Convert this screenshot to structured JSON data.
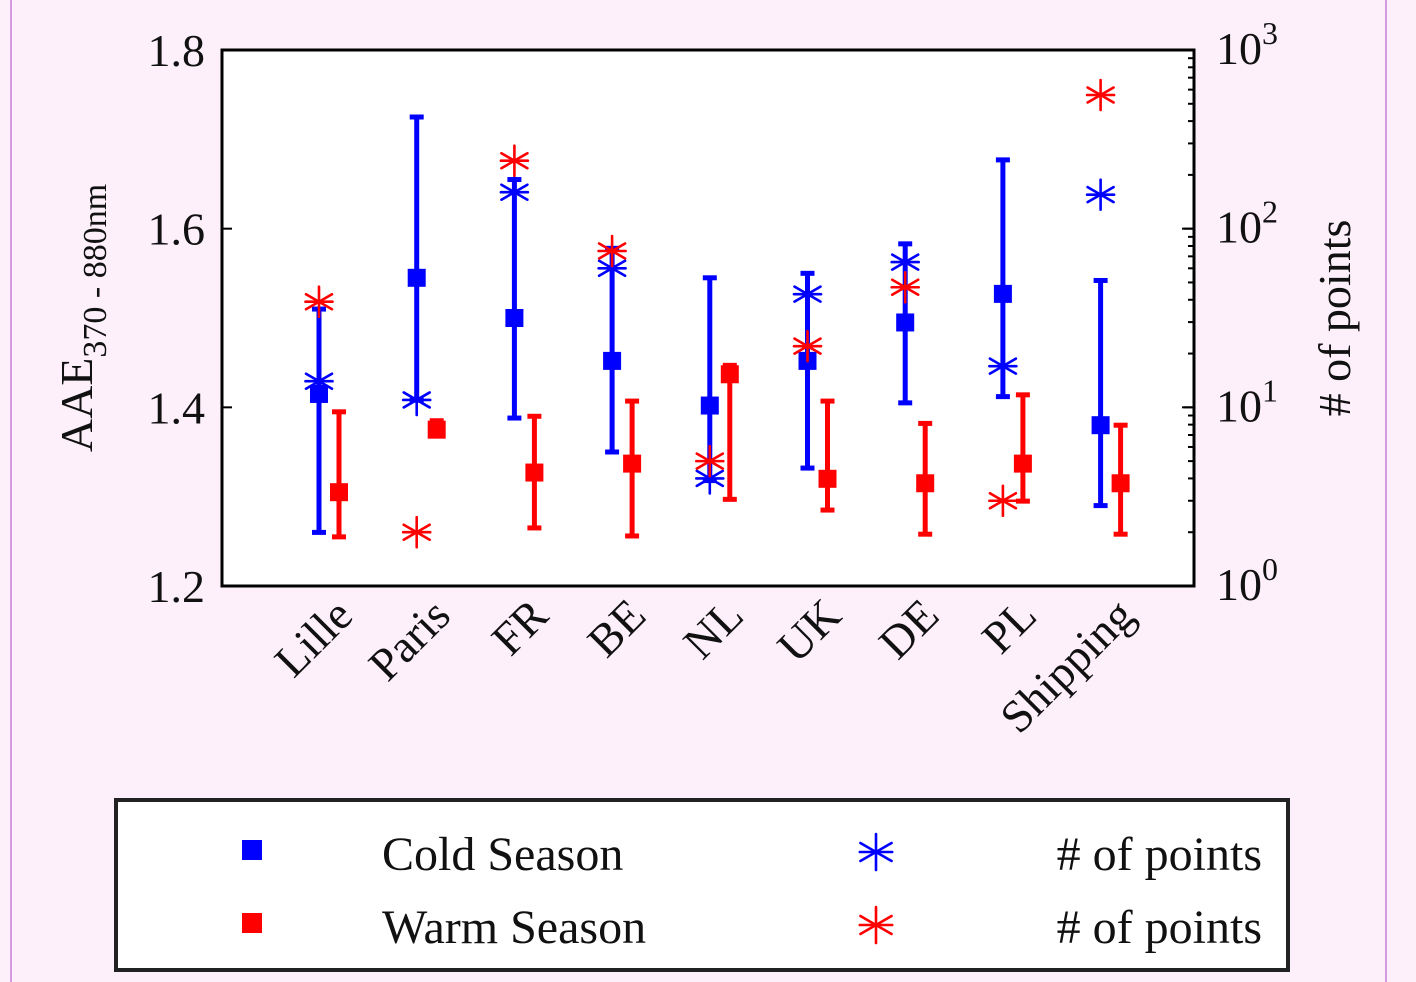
{
  "chart_data": {
    "type": "scatter",
    "categories": [
      "Lille",
      "Paris",
      "FR",
      "BE",
      "NL",
      "UK",
      "DE",
      "PL",
      "Shipping"
    ],
    "y_left": {
      "label_main": "AAE",
      "label_sub": "370 - 880nm",
      "range": [
        1.2,
        1.8
      ],
      "ticks": [
        1.2,
        1.4,
        1.6,
        1.8
      ],
      "tick_labels": [
        "1.2",
        "1.4",
        "1.6",
        "1.8"
      ]
    },
    "y_right": {
      "label": "# of points",
      "scale": "log",
      "range": [
        1,
        1000
      ],
      "ticks": [
        1,
        10,
        100,
        1000
      ],
      "tick_base": "10",
      "tick_exponents": [
        "0",
        "1",
        "2",
        "3"
      ]
    },
    "series": [
      {
        "name": "Cold Season",
        "axis": "left",
        "marker": "square",
        "color": "#0000ff",
        "values": [
          1.415,
          1.545,
          1.5,
          1.452,
          1.402,
          1.452,
          1.495,
          1.527,
          1.38
        ],
        "err_low": [
          1.26,
          1.408,
          1.388,
          1.35,
          1.318,
          1.332,
          1.405,
          1.412,
          1.29
        ],
        "err_high": [
          1.51,
          1.725,
          1.655,
          1.578,
          1.545,
          1.55,
          1.583,
          1.677,
          1.542
        ]
      },
      {
        "name": "Warm Season",
        "axis": "left",
        "marker": "square",
        "color": "#ff0000",
        "values": [
          1.305,
          1.375,
          1.327,
          1.337,
          1.437,
          1.32,
          1.315,
          1.337,
          1.315
        ],
        "err_low": [
          1.255,
          1.37,
          1.265,
          1.256,
          1.297,
          1.285,
          1.258,
          1.295,
          1.258
        ],
        "err_high": [
          1.395,
          1.385,
          1.39,
          1.407,
          1.447,
          1.407,
          1.382,
          1.414,
          1.38
        ]
      },
      {
        "name": "# of points",
        "axis": "right",
        "marker": "asterisk",
        "color": "#0000ff",
        "values": [
          14,
          11,
          160,
          60,
          4,
          43,
          65,
          17,
          155
        ]
      },
      {
        "name": "# of points",
        "axis": "right",
        "marker": "asterisk",
        "color": "#ff0000",
        "values": [
          39,
          2,
          240,
          75,
          5,
          22,
          47,
          3,
          560
        ]
      }
    ],
    "legend": {
      "placement": "bottom",
      "entries": [
        "Cold Season",
        "Warm Season",
        "# of points",
        "# of points"
      ]
    }
  }
}
